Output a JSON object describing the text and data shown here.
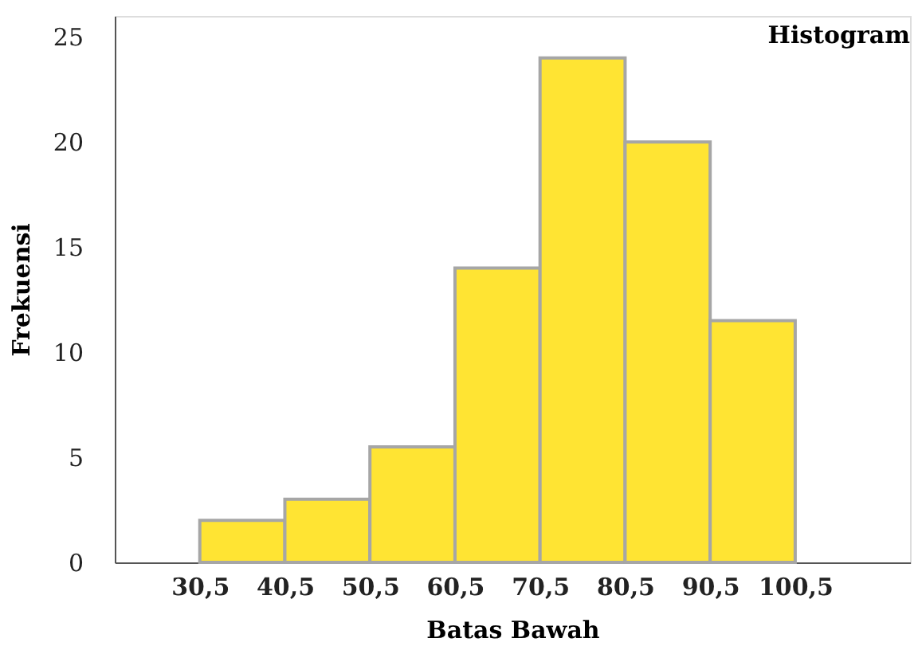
{
  "chart_data": {
    "type": "histogram",
    "title": "Histogram",
    "xlabel": "Batas Bawah",
    "ylabel": "Frekuensi",
    "bins": [
      30.5,
      40.5,
      50.5,
      60.5,
      70.5,
      80.5,
      90.5,
      100.5
    ],
    "values": [
      2,
      3,
      5.5,
      14,
      24,
      20,
      11.5
    ],
    "color": "#ffe433",
    "xlim": [
      20.5,
      114
    ],
    "ylim": [
      0,
      26
    ],
    "xticks": [
      {
        "value": 30.5,
        "label": "30,5"
      },
      {
        "value": 40.5,
        "label": "40,5"
      },
      {
        "value": 50.5,
        "label": "50,5"
      },
      {
        "value": 60.5,
        "label": "60,5"
      },
      {
        "value": 70.5,
        "label": "70,5"
      },
      {
        "value": 80.5,
        "label": "80,5"
      },
      {
        "value": 90.5,
        "label": "90,5"
      },
      {
        "value": 100.5,
        "label": "100,5"
      }
    ],
    "yticks": [
      0,
      5,
      10,
      15,
      20,
      25
    ],
    "grid": false
  }
}
